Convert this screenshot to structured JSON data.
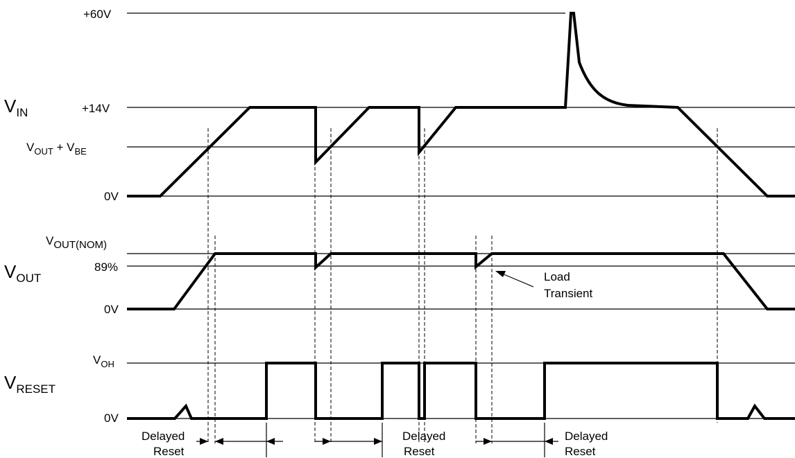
{
  "signals": {
    "vin": {
      "main": "V",
      "sub": "IN"
    },
    "vout": {
      "main": "V",
      "sub": "OUT"
    },
    "vreset": {
      "main": "V",
      "sub": "RESET"
    }
  },
  "levels": {
    "v60": "+60V",
    "v14": "+14V",
    "vout_vbe_main": "V",
    "vout_vbe_sub": "OUT",
    "vout_vbe_plus": " + V",
    "vout_vbe_sub2": "BE",
    "vin_0v": "0V",
    "vout_nom_main": "V",
    "vout_nom_sub": "OUT(NOM)",
    "pct89": "89%",
    "vout_0v": "0V",
    "voh_main": "V",
    "voh_sub": "OH",
    "vreset_0v": "0V"
  },
  "annotations": {
    "load_transient_line1": "Load",
    "load_transient_line2": "Transient",
    "delayed_reset_1_line1": "Delayed",
    "delayed_reset_1_line2": "Reset",
    "delayed_reset_2_line1": "Delayed",
    "delayed_reset_2_line2": "Reset",
    "delayed_reset_3_line1": "Delayed",
    "delayed_reset_3_line2": "Reset"
  }
}
